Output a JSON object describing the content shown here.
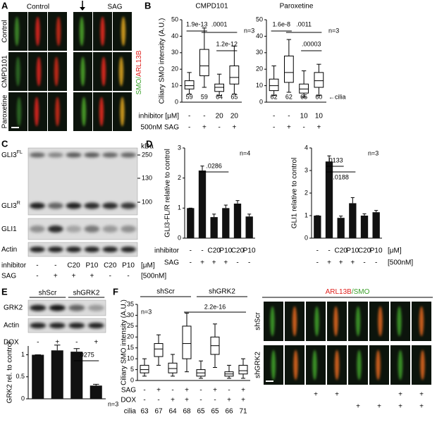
{
  "panel_labels": [
    "A",
    "B",
    "C",
    "D",
    "E",
    "F"
  ],
  "images_A": {
    "columns": [
      "Control",
      "SAG"
    ],
    "rows": [
      "Control",
      "CMPD101",
      "Paroxetine"
    ],
    "channels": [
      "SMO/",
      "ARL13B"
    ]
  },
  "blot_C": {
    "bands": [
      {
        "name": "GLI3",
        "sup": "FL"
      },
      {
        "name": "GLI3",
        "sup": "R"
      },
      {
        "name": "GLI1"
      },
      {
        "name": "Actin"
      }
    ],
    "kda_label": "kDa",
    "kda": [
      250,
      130,
      100
    ],
    "row_labels": [
      "inhibitor",
      "SAG"
    ],
    "rows": [
      [
        "-",
        "-",
        "C20",
        "P10",
        "C20",
        "P10"
      ],
      [
        "-",
        "+",
        "+",
        "+",
        "-",
        "-"
      ]
    ],
    "row_units": [
      "[μM]",
      "[500nM]"
    ]
  },
  "blot_E": {
    "groups": [
      "shScr",
      "shGRK2"
    ],
    "bands": [
      "GRK2",
      "Actin"
    ],
    "row_label": "DOX",
    "row": [
      "-",
      "+",
      "-",
      "+"
    ]
  },
  "images_F": {
    "channels": [
      "ARL13B",
      "/SMO"
    ],
    "rows": [
      "shScr",
      "shGRK2"
    ],
    "marks": [
      [
        null,
        null,
        "+",
        "+",
        null,
        null,
        "+",
        "+"
      ],
      [
        null,
        null,
        null,
        null,
        "+",
        "+",
        "+",
        "+"
      ]
    ]
  },
  "chart_data": [
    {
      "type": "box",
      "title": "CMPD101",
      "ylabel": "Ciliary SMO intensity (A.U.)",
      "ylim": [
        0,
        50
      ],
      "yticks": [
        0,
        10,
        20,
        30,
        40,
        50
      ],
      "min": [
        5,
        9,
        4,
        5
      ],
      "q1": [
        8,
        16,
        6.5,
        11
      ],
      "median": [
        10,
        22,
        9,
        15
      ],
      "q3": [
        13,
        32,
        11,
        22
      ],
      "max": [
        18,
        45,
        17,
        34
      ],
      "counts": [
        59,
        59,
        64,
        65
      ],
      "p_values": [
        "1.9e-13",
        ".0001",
        "1.2e-12"
      ],
      "n_label": "n=3",
      "row_labels": [
        "inhibitor [μM]",
        "500nM SAG"
      ],
      "rows": [
        [
          "-",
          "-",
          "20",
          "20"
        ],
        [
          "-",
          "+",
          "-",
          "+"
        ]
      ]
    },
    {
      "type": "box",
      "title": "Paroxetine",
      "ylim": [
        0,
        50
      ],
      "yticks": [
        0,
        10,
        20,
        30,
        40,
        50
      ],
      "min": [
        4,
        6,
        3,
        4
      ],
      "q1": [
        7,
        12,
        5.5,
        9
      ],
      "median": [
        10,
        18,
        8,
        13
      ],
      "q3": [
        14,
        28,
        11,
        18
      ],
      "max": [
        22,
        38,
        19,
        23
      ],
      "counts": [
        62,
        62,
        65,
        60
      ],
      "count_label": "←cilia",
      "p_values": [
        "1.6e-8",
        ".0011",
        ".00003"
      ],
      "n_label": "n=3",
      "rows": [
        [
          "-",
          "-",
          "10",
          "10"
        ],
        [
          "-",
          "+",
          "-",
          "+"
        ]
      ]
    },
    {
      "type": "bar",
      "ylabel": "GLI3-FL/R relative to control",
      "ylim": [
        0,
        3
      ],
      "yticks": [
        0,
        1,
        2,
        3
      ],
      "color": "#111111",
      "values": [
        1,
        2.25,
        0.7,
        1.0,
        1.15,
        0.72
      ],
      "errors": [
        0,
        0.15,
        0.1,
        0.1,
        0.1,
        0.08
      ],
      "p_values": [
        ".0286"
      ],
      "n_label": "n=4",
      "row_labels": [
        "inhibitor",
        "SAG"
      ],
      "rows": [
        [
          "-",
          "-",
          "C20",
          "P10",
          "C20",
          "P10"
        ],
        [
          "-",
          "+",
          "+",
          "+",
          "-",
          "-"
        ]
      ]
    },
    {
      "type": "bar",
      "ylabel": "GLI1 relative to control",
      "ylim": [
        0,
        4
      ],
      "yticks": [
        0,
        1,
        2,
        3,
        4
      ],
      "color": "#111111",
      "values": [
        1,
        3.4,
        0.9,
        1.55,
        1.0,
        1.15
      ],
      "errors": [
        0,
        0.25,
        0.08,
        0.25,
        0.08,
        0.08
      ],
      "p_values": [
        ".0133",
        ".0188"
      ],
      "n_label": "n=3",
      "rows": [
        [
          "-",
          "-",
          "C20",
          "P10",
          "C20",
          "P10"
        ],
        [
          "-",
          "+",
          "+",
          "+",
          "-",
          "-"
        ]
      ],
      "row_units": [
        "[μM]",
        "[500nM]"
      ]
    },
    {
      "type": "bar",
      "ylabel": "GRK2 rel. to control",
      "ylim": [
        0,
        1.2
      ],
      "yticks": [
        0,
        0.5,
        1
      ],
      "color": "#111111",
      "values": [
        1,
        1.1,
        1.07,
        0.3
      ],
      "errors": [
        0,
        0.12,
        0.07,
        0.03
      ],
      "p_values": [
        ".0275"
      ],
      "n_label": "n=3"
    },
    {
      "type": "box",
      "ylabel": "Ciliary SMO intensity (A.U.)",
      "ylim": [
        0,
        35
      ],
      "yticks": [
        0,
        5,
        10,
        15,
        20,
        25,
        30,
        35
      ],
      "min": [
        2,
        7,
        2,
        4,
        1,
        6,
        1,
        1
      ],
      "q1": [
        3.5,
        11,
        3.5,
        10,
        2,
        12,
        2,
        3
      ],
      "median": [
        5,
        14.5,
        5.5,
        17,
        3.5,
        16,
        3,
        4.5
      ],
      "q3": [
        7,
        17,
        8,
        25,
        5,
        20,
        4,
        7
      ],
      "max": [
        10,
        21,
        12,
        31,
        9,
        26,
        7,
        10
      ],
      "groups": [
        "shScr",
        "shGRK2"
      ],
      "p_values": [
        "2.2e-16"
      ],
      "n_label": "n=3",
      "row_labels": [
        "SAG",
        "DOX",
        "cilia"
      ],
      "rows": [
        [
          "-",
          "+",
          "-",
          "+",
          "-",
          "+",
          "-",
          "+"
        ],
        [
          "-",
          "-",
          "+",
          "+",
          "-",
          "-",
          "+",
          "+"
        ]
      ],
      "counts": [
        63,
        67,
        64,
        68,
        65,
        65,
        66,
        71
      ]
    }
  ]
}
